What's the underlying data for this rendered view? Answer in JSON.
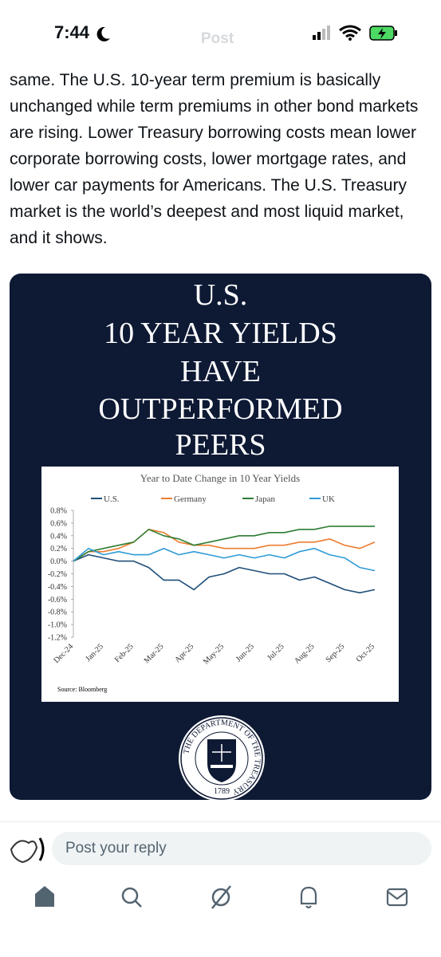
{
  "status_bar": {
    "time": "7:44"
  },
  "nav": {
    "title": "Post"
  },
  "post": {
    "text": "same. The U.S. 10-year term premium is basically unchanged while term premiums in other bond markets are rising. Lower Treasury borrowing costs mean lower corporate borrowing costs, lower mortgage rates, and lower car payments for Americans. The U.S. Treasury market is the world’s deepest and most liquid market, and it shows."
  },
  "image": {
    "headline": [
      "U.S.",
      "10 YEAR YIELDS",
      "HAVE",
      "OUTPERFORMED",
      "PEERS"
    ],
    "seal": {
      "ring_text": "THE DEPARTMENT OF THE TREASURY",
      "year": "1789"
    }
  },
  "chart_data": {
    "type": "line",
    "title": "Year to Date Change in 10 Year Yields",
    "source": "Source: Bloomberg",
    "categories": [
      "Dec-24",
      null,
      "Jan-25",
      null,
      "Feb-25",
      null,
      "Mar-25",
      null,
      "Apr-25",
      null,
      "May-25",
      null,
      "Jun-25",
      null,
      "Jul-25",
      null,
      "Aug-25",
      null,
      "Sep-25",
      null,
      "Oct-25"
    ],
    "series": [
      {
        "name": "U.S.",
        "color": "#1f4e79",
        "values": [
          0,
          0.1,
          0.05,
          0.0,
          0.0,
          -0.1,
          -0.3,
          -0.3,
          -0.45,
          -0.25,
          -0.2,
          -0.1,
          -0.15,
          -0.2,
          -0.2,
          -0.3,
          -0.25,
          -0.35,
          -0.45,
          -0.5,
          -0.45
        ]
      },
      {
        "name": "Germany",
        "color": "#ed7d31",
        "values": [
          0,
          0.15,
          0.15,
          0.2,
          0.3,
          0.5,
          0.45,
          0.3,
          0.25,
          0.25,
          0.2,
          0.2,
          0.2,
          0.25,
          0.25,
          0.3,
          0.3,
          0.35,
          0.25,
          0.2,
          0.3
        ]
      },
      {
        "name": "Japan",
        "color": "#2e7d32",
        "values": [
          0,
          0.15,
          0.2,
          0.25,
          0.3,
          0.5,
          0.4,
          0.35,
          0.25,
          0.3,
          0.35,
          0.4,
          0.4,
          0.45,
          0.45,
          0.5,
          0.5,
          0.55,
          0.55,
          0.55,
          0.55
        ]
      },
      {
        "name": "UK",
        "color": "#2e9bd6",
        "values": [
          0,
          0.2,
          0.1,
          0.15,
          0.1,
          0.1,
          0.2,
          0.1,
          0.15,
          0.1,
          0.05,
          0.1,
          0.05,
          0.1,
          0.05,
          0.15,
          0.2,
          0.1,
          0.05,
          -0.1,
          -0.15
        ]
      }
    ],
    "ylim": [
      -1.2,
      0.8
    ],
    "yticks": [
      {
        "value": 0.8,
        "label": "0.8%"
      },
      {
        "value": 0.6,
        "label": "0.6%"
      },
      {
        "value": 0.4,
        "label": "0.4%"
      },
      {
        "value": 0.2,
        "label": "0.2%"
      },
      {
        "value": 0.0,
        "label": "0.0%"
      },
      {
        "value": -0.2,
        "label": "-0.2%"
      },
      {
        "value": -0.4,
        "label": "-0.4%"
      },
      {
        "value": -0.6,
        "label": "-0.6%"
      },
      {
        "value": -0.8,
        "label": "-0.8%"
      },
      {
        "value": -1.0,
        "label": "-1.0%"
      },
      {
        "value": -1.2,
        "label": "-1.2%"
      }
    ],
    "grid": false,
    "legend": "top"
  },
  "reply": {
    "placeholder": "Post your reply"
  }
}
